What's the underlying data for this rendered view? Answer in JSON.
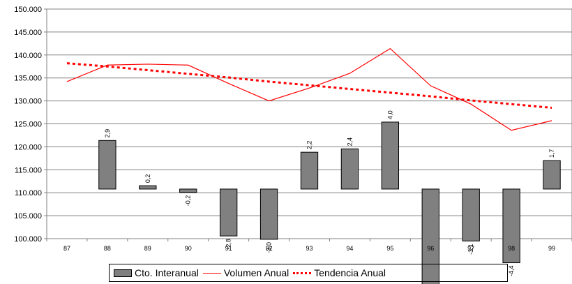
{
  "chart_data": {
    "type": "bar",
    "x": [
      "87",
      "88",
      "89",
      "90",
      "91",
      "92",
      "93",
      "94",
      "95",
      "96",
      "97",
      "98",
      "99"
    ],
    "yticks": [
      "100.000",
      "105.000",
      "110.000",
      "115.000",
      "120.000",
      "125.000",
      "130.000",
      "135.000",
      "140.000",
      "145.000",
      "150.000"
    ],
    "ylim": [
      100000,
      150000
    ],
    "bar_baseline": 110800,
    "grid": true,
    "legend_position": "bottom",
    "series": [
      {
        "name": "Cto. Interanual",
        "type": "bar",
        "color": "#808080",
        "values": [
          null,
          2.9,
          0.2,
          -0.2,
          -2.8,
          -3.0,
          2.2,
          2.4,
          4.0,
          -5.7,
          -3.1,
          -4.4,
          1.7
        ],
        "labels": [
          "",
          "2,9",
          "0,2",
          "-0,2",
          "-2,8",
          "-3,0",
          "2,2",
          "2,4",
          "4,0",
          "-5,7",
          "-3,1",
          "-4,4",
          "1,7"
        ]
      },
      {
        "name": "Volumen Anual",
        "type": "line",
        "color": "#ff0000",
        "values": [
          134200,
          137800,
          138000,
          137800,
          133800,
          130000,
          132800,
          136000,
          141400,
          133300,
          129300,
          123600,
          125700
        ]
      },
      {
        "name": "Tendencia Anual",
        "type": "line",
        "style": "dotted",
        "color": "#ff0000",
        "values": [
          138200,
          137500,
          136700,
          135900,
          135100,
          134200,
          133400,
          132600,
          131800,
          131000,
          130100,
          129300,
          128500
        ]
      }
    ]
  }
}
